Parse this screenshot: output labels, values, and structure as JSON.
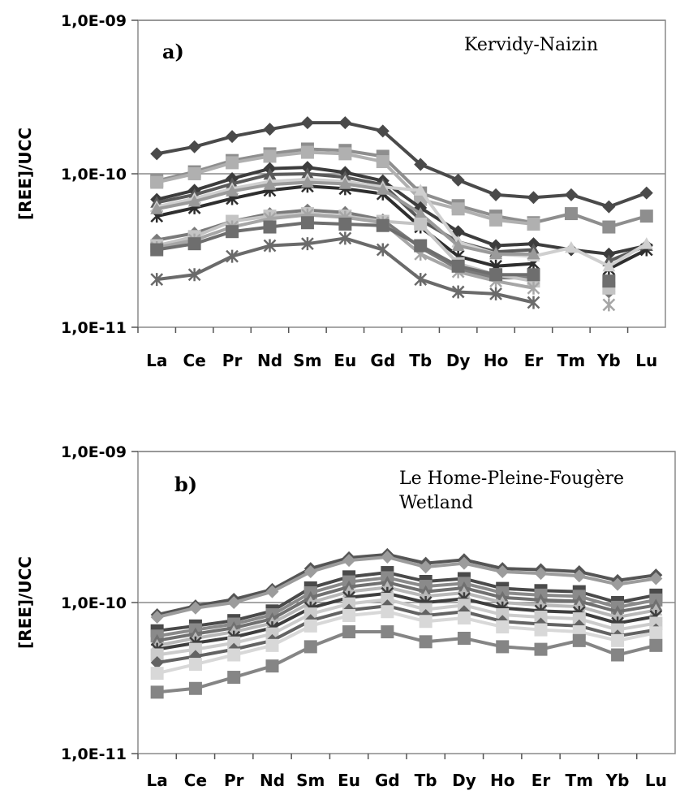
{
  "chart_data": [
    {
      "type": "line",
      "panel_label": "a)",
      "annotation": "Kervidy-Naizin",
      "ylabel": "[REE]/UCC",
      "yscale": "log",
      "ylim": [
        1e-11,
        1e-09
      ],
      "yticks": [
        1e-11,
        1e-10,
        1e-09
      ],
      "ytick_labels": [
        "1,0E-11",
        "1,0E-10",
        "1,0E-09"
      ],
      "categories": [
        "La",
        "Ce",
        "Pr",
        "Nd",
        "Sm",
        "Eu",
        "Gd",
        "Tb",
        "Dy",
        "Ho",
        "Er",
        "Tm",
        "Yb",
        "Lu"
      ],
      "grid": "major-y",
      "series": [
        {
          "color": "#4a4a4a",
          "marker": "diamond",
          "values": [
            1.35e-10,
            1.5e-10,
            1.75e-10,
            1.95e-10,
            2.15e-10,
            2.15e-10,
            1.9e-10,
            1.15e-10,
            9.1e-11,
            7.3e-11,
            7e-11,
            7.3e-11,
            6.1e-11,
            7.5e-11
          ]
        },
        {
          "color": "#8e8e8e",
          "marker": "square",
          "values": [
            9e-11,
            1.03e-10,
            1.22e-10,
            1.35e-10,
            1.45e-10,
            1.42e-10,
            1.3e-10,
            7.5e-11,
            6.2e-11,
            5.3e-11,
            4.8e-11,
            5.5e-11,
            4.5e-11,
            5.3e-11
          ]
        },
        {
          "color": "#b0b0b0",
          "marker": "square",
          "values": [
            8.8e-11,
            1e-10,
            1.18e-10,
            1.3e-10,
            1.38e-10,
            1.35e-10,
            1.2e-10,
            6.8e-11,
            5.9e-11,
            5e-11,
            4.7e-11,
            null,
            null,
            null
          ]
        },
        {
          "color": "#3c3c3c",
          "marker": "diamond",
          "values": [
            6.8e-11,
            7.8e-11,
            9.3e-11,
            1.08e-10,
            1.1e-10,
            1.02e-10,
            9e-11,
            6e-11,
            4.2e-11,
            3.4e-11,
            3.5e-11,
            3.2e-11,
            3e-11,
            3.4e-11
          ]
        },
        {
          "color": "#5a5a5a",
          "marker": "triangle",
          "values": [
            6.5e-11,
            7.3e-11,
            8.6e-11,
            9.9e-11,
            1e-10,
            9.5e-11,
            8.5e-11,
            5e-11,
            3.6e-11,
            3.1e-11,
            3.2e-11,
            null,
            2.7e-11,
            3.4e-11
          ]
        },
        {
          "color": "#2e2e2e",
          "marker": "x",
          "values": [
            5.3e-11,
            6e-11,
            6.9e-11,
            7.8e-11,
            8.3e-11,
            8e-11,
            7.4e-11,
            4.5e-11,
            2.9e-11,
            2.5e-11,
            2.6e-11,
            null,
            2.4e-11,
            3.2e-11
          ]
        },
        {
          "color": "#cfcfcf",
          "marker": "triangle",
          "values": [
            6.1e-11,
            6.9e-11,
            8e-11,
            8.9e-11,
            9.2e-11,
            8.9e-11,
            8.2e-11,
            7.8e-11,
            3.6e-11,
            3e-11,
            2.9e-11,
            3.3e-11,
            2.5e-11,
            3.5e-11
          ]
        },
        {
          "color": "#9a9a9a",
          "marker": "triangle",
          "values": [
            5.9e-11,
            6.6e-11,
            7.7e-11,
            8.5e-11,
            8.8e-11,
            8.6e-11,
            7.9e-11,
            5.5e-11,
            3.4e-11,
            3e-11,
            3e-11,
            null,
            null,
            null
          ]
        },
        {
          "color": "#7a7a7a",
          "marker": "diamond",
          "values": [
            3.7e-11,
            4.1e-11,
            4.9e-11,
            5.5e-11,
            5.8e-11,
            5.6e-11,
            5e-11,
            3.3e-11,
            2.4e-11,
            2.1e-11,
            2.1e-11,
            null,
            1.7e-11,
            null
          ]
        },
        {
          "color": "#c4c4c4",
          "marker": "square",
          "values": [
            3.4e-11,
            3.9e-11,
            4.9e-11,
            5.3e-11,
            5.5e-11,
            5.3e-11,
            4.9e-11,
            4.7e-11,
            2.6e-11,
            2.2e-11,
            2e-11,
            null,
            1.8e-11,
            null
          ]
        },
        {
          "color": "#a6a6a6",
          "marker": "x",
          "values": [
            3.3e-11,
            3.7e-11,
            4.5e-11,
            5.1e-11,
            5.4e-11,
            5.2e-11,
            4.8e-11,
            3e-11,
            2.3e-11,
            2e-11,
            1.8e-11,
            null,
            1.4e-11,
            null
          ]
        },
        {
          "color": "#6e6e6e",
          "marker": "square",
          "values": [
            3.2e-11,
            3.5e-11,
            4.2e-11,
            4.5e-11,
            4.8e-11,
            4.7e-11,
            4.6e-11,
            3.4e-11,
            2.5e-11,
            2.2e-11,
            2.2e-11,
            null,
            2e-11,
            null
          ]
        },
        {
          "color": "#6a6a6a",
          "marker": "x",
          "values": [
            2.05e-11,
            2.2e-11,
            2.9e-11,
            3.4e-11,
            3.5e-11,
            3.8e-11,
            3.2e-11,
            2.05e-11,
            1.7e-11,
            1.65e-11,
            1.45e-11,
            null,
            null,
            null
          ]
        }
      ]
    },
    {
      "type": "line",
      "panel_label": "b)",
      "annotation": [
        "Le Home-Pleine-Fougère",
        "Wetland"
      ],
      "ylabel": "[REE]/UCC",
      "yscale": "log",
      "ylim": [
        1e-11,
        1e-09
      ],
      "yticks": [
        1e-11,
        1e-10,
        1e-09
      ],
      "ytick_labels": [
        "1,0E-11",
        "1,0E-10",
        "1,0E-09"
      ],
      "categories": [
        "La",
        "Ce",
        "Pr",
        "Nd",
        "Sm",
        "Eu",
        "Gd",
        "Tb",
        "Dy",
        "Ho",
        "Er",
        "Tm",
        "Yb",
        "Lu"
      ],
      "grid": "major-y",
      "series": [
        {
          "color": "#555555",
          "marker": "diamond",
          "values": [
            8.3e-11,
            9.5e-11,
            1.05e-10,
            1.22e-10,
            1.68e-10,
            1.98e-10,
            2.08e-10,
            1.82e-10,
            1.92e-10,
            1.68e-10,
            1.65e-10,
            1.6e-10,
            1.4e-10,
            1.52e-10
          ]
        },
        {
          "color": "#9c9c9c",
          "marker": "diamond",
          "values": [
            8e-11,
            9.2e-11,
            1e-10,
            1.18e-10,
            1.6e-10,
            1.9e-10,
            2e-10,
            1.72e-10,
            1.82e-10,
            1.6e-10,
            1.56e-10,
            1.5e-10,
            1.32e-10,
            1.44e-10
          ]
        },
        {
          "color": "#4a4a4a",
          "marker": "square",
          "values": [
            6.5e-11,
            7e-11,
            7.6e-11,
            8.8e-11,
            1.25e-10,
            1.48e-10,
            1.58e-10,
            1.38e-10,
            1.44e-10,
            1.24e-10,
            1.2e-10,
            1.18e-10,
            1e-10,
            1.12e-10
          ]
        },
        {
          "color": "#8a8a8a",
          "marker": "square",
          "values": [
            6e-11,
            6.6e-11,
            7.2e-11,
            8.3e-11,
            1.16e-10,
            1.37e-10,
            1.46e-10,
            1.28e-10,
            1.34e-10,
            1.16e-10,
            1.12e-10,
            1.1e-10,
            9.3e-11,
            1.04e-10
          ]
        },
        {
          "color": "#707070",
          "marker": "triangle",
          "values": [
            5.6e-11,
            6.2e-11,
            6.8e-11,
            7.8e-11,
            1.08e-10,
            1.27e-10,
            1.36e-10,
            1.18e-10,
            1.25e-10,
            1.08e-10,
            1.04e-10,
            1.02e-10,
            8.7e-11,
            9.6e-11
          ]
        },
        {
          "color": "#b8b8b8",
          "marker": "triangle",
          "values": [
            5.2e-11,
            5.8e-11,
            6.4e-11,
            7.3e-11,
            1e-10,
            1.18e-10,
            1.26e-10,
            1.1e-10,
            1.16e-10,
            1e-10,
            9.6e-11,
            9.4e-11,
            8e-11,
            8.9e-11
          ]
        },
        {
          "color": "#3e3e3e",
          "marker": "x",
          "values": [
            4.9e-11,
            5.4e-11,
            5.9e-11,
            6.8e-11,
            9.2e-11,
            1.08e-10,
            1.15e-10,
            1e-10,
            1.06e-10,
            9.2e-11,
            8.8e-11,
            8.6e-11,
            7.3e-11,
            8.1e-11
          ]
        },
        {
          "color": "#cccccc",
          "marker": "square",
          "values": [
            4.5e-11,
            4.9e-11,
            5.4e-11,
            6.2e-11,
            8.4e-11,
            9.8e-11,
            1.05e-10,
            9e-11,
            9.6e-11,
            8.3e-11,
            8e-11,
            7.8e-11,
            6.6e-11,
            7.3e-11
          ]
        },
        {
          "color": "#636363",
          "marker": "diamond",
          "values": [
            4e-11,
            4.4e-11,
            4.9e-11,
            5.6e-11,
            7.6e-11,
            8.9e-11,
            9.5e-11,
            8.2e-11,
            8.7e-11,
            7.5e-11,
            7.2e-11,
            7e-11,
            6e-11,
            6.6e-11
          ]
        },
        {
          "color": "#d8d8d8",
          "marker": "square",
          "values": [
            3.4e-11,
            3.9e-11,
            4.5e-11,
            5.2e-11,
            7e-11,
            8.2e-11,
            8.7e-11,
            7.5e-11,
            7.9e-11,
            6.9e-11,
            6.6e-11,
            6.4e-11,
            5.6e-11,
            6.3e-11
          ]
        },
        {
          "color": "#858585",
          "marker": "square",
          "values": [
            2.55e-11,
            2.7e-11,
            3.2e-11,
            3.8e-11,
            5.1e-11,
            6.4e-11,
            6.4e-11,
            5.5e-11,
            5.8e-11,
            5.1e-11,
            4.9e-11,
            5.6e-11,
            4.5e-11,
            5.2e-11
          ]
        }
      ]
    }
  ]
}
